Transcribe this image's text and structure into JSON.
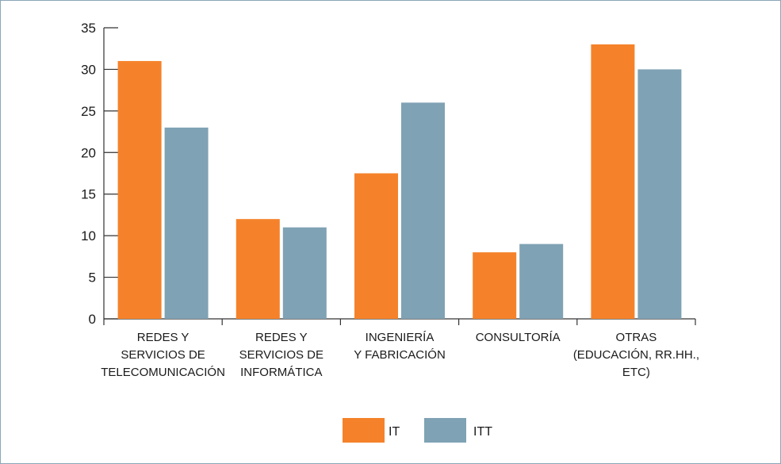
{
  "chart_data": {
    "type": "bar",
    "categories": [
      [
        "REDES Y",
        "SERVICIOS DE",
        "TELECOMUNICACIÓN"
      ],
      [
        "REDES Y",
        "SERVICIOS DE",
        "INFORMÁTICA"
      ],
      [
        "INGENIERÍA",
        "Y FABRICACIÓN"
      ],
      [
        "CONSULTORÍA"
      ],
      [
        "OTRAS",
        "(EDUCACIÓN, RR.HH.,",
        "ETC)"
      ]
    ],
    "series": [
      {
        "name": "IT",
        "color": "#f5822a",
        "values": [
          31,
          12,
          17.5,
          8,
          33
        ]
      },
      {
        "name": "ITT",
        "color": "#7fa2b4",
        "values": [
          23,
          11,
          26,
          9,
          30
        ]
      }
    ],
    "ylim": [
      0,
      35
    ],
    "yticks": [
      0,
      5,
      10,
      15,
      20,
      25,
      30,
      35
    ],
    "grid": false,
    "legend": "bottom-center",
    "axis_color": "#333333",
    "frame_color": "#8aa6b8"
  }
}
